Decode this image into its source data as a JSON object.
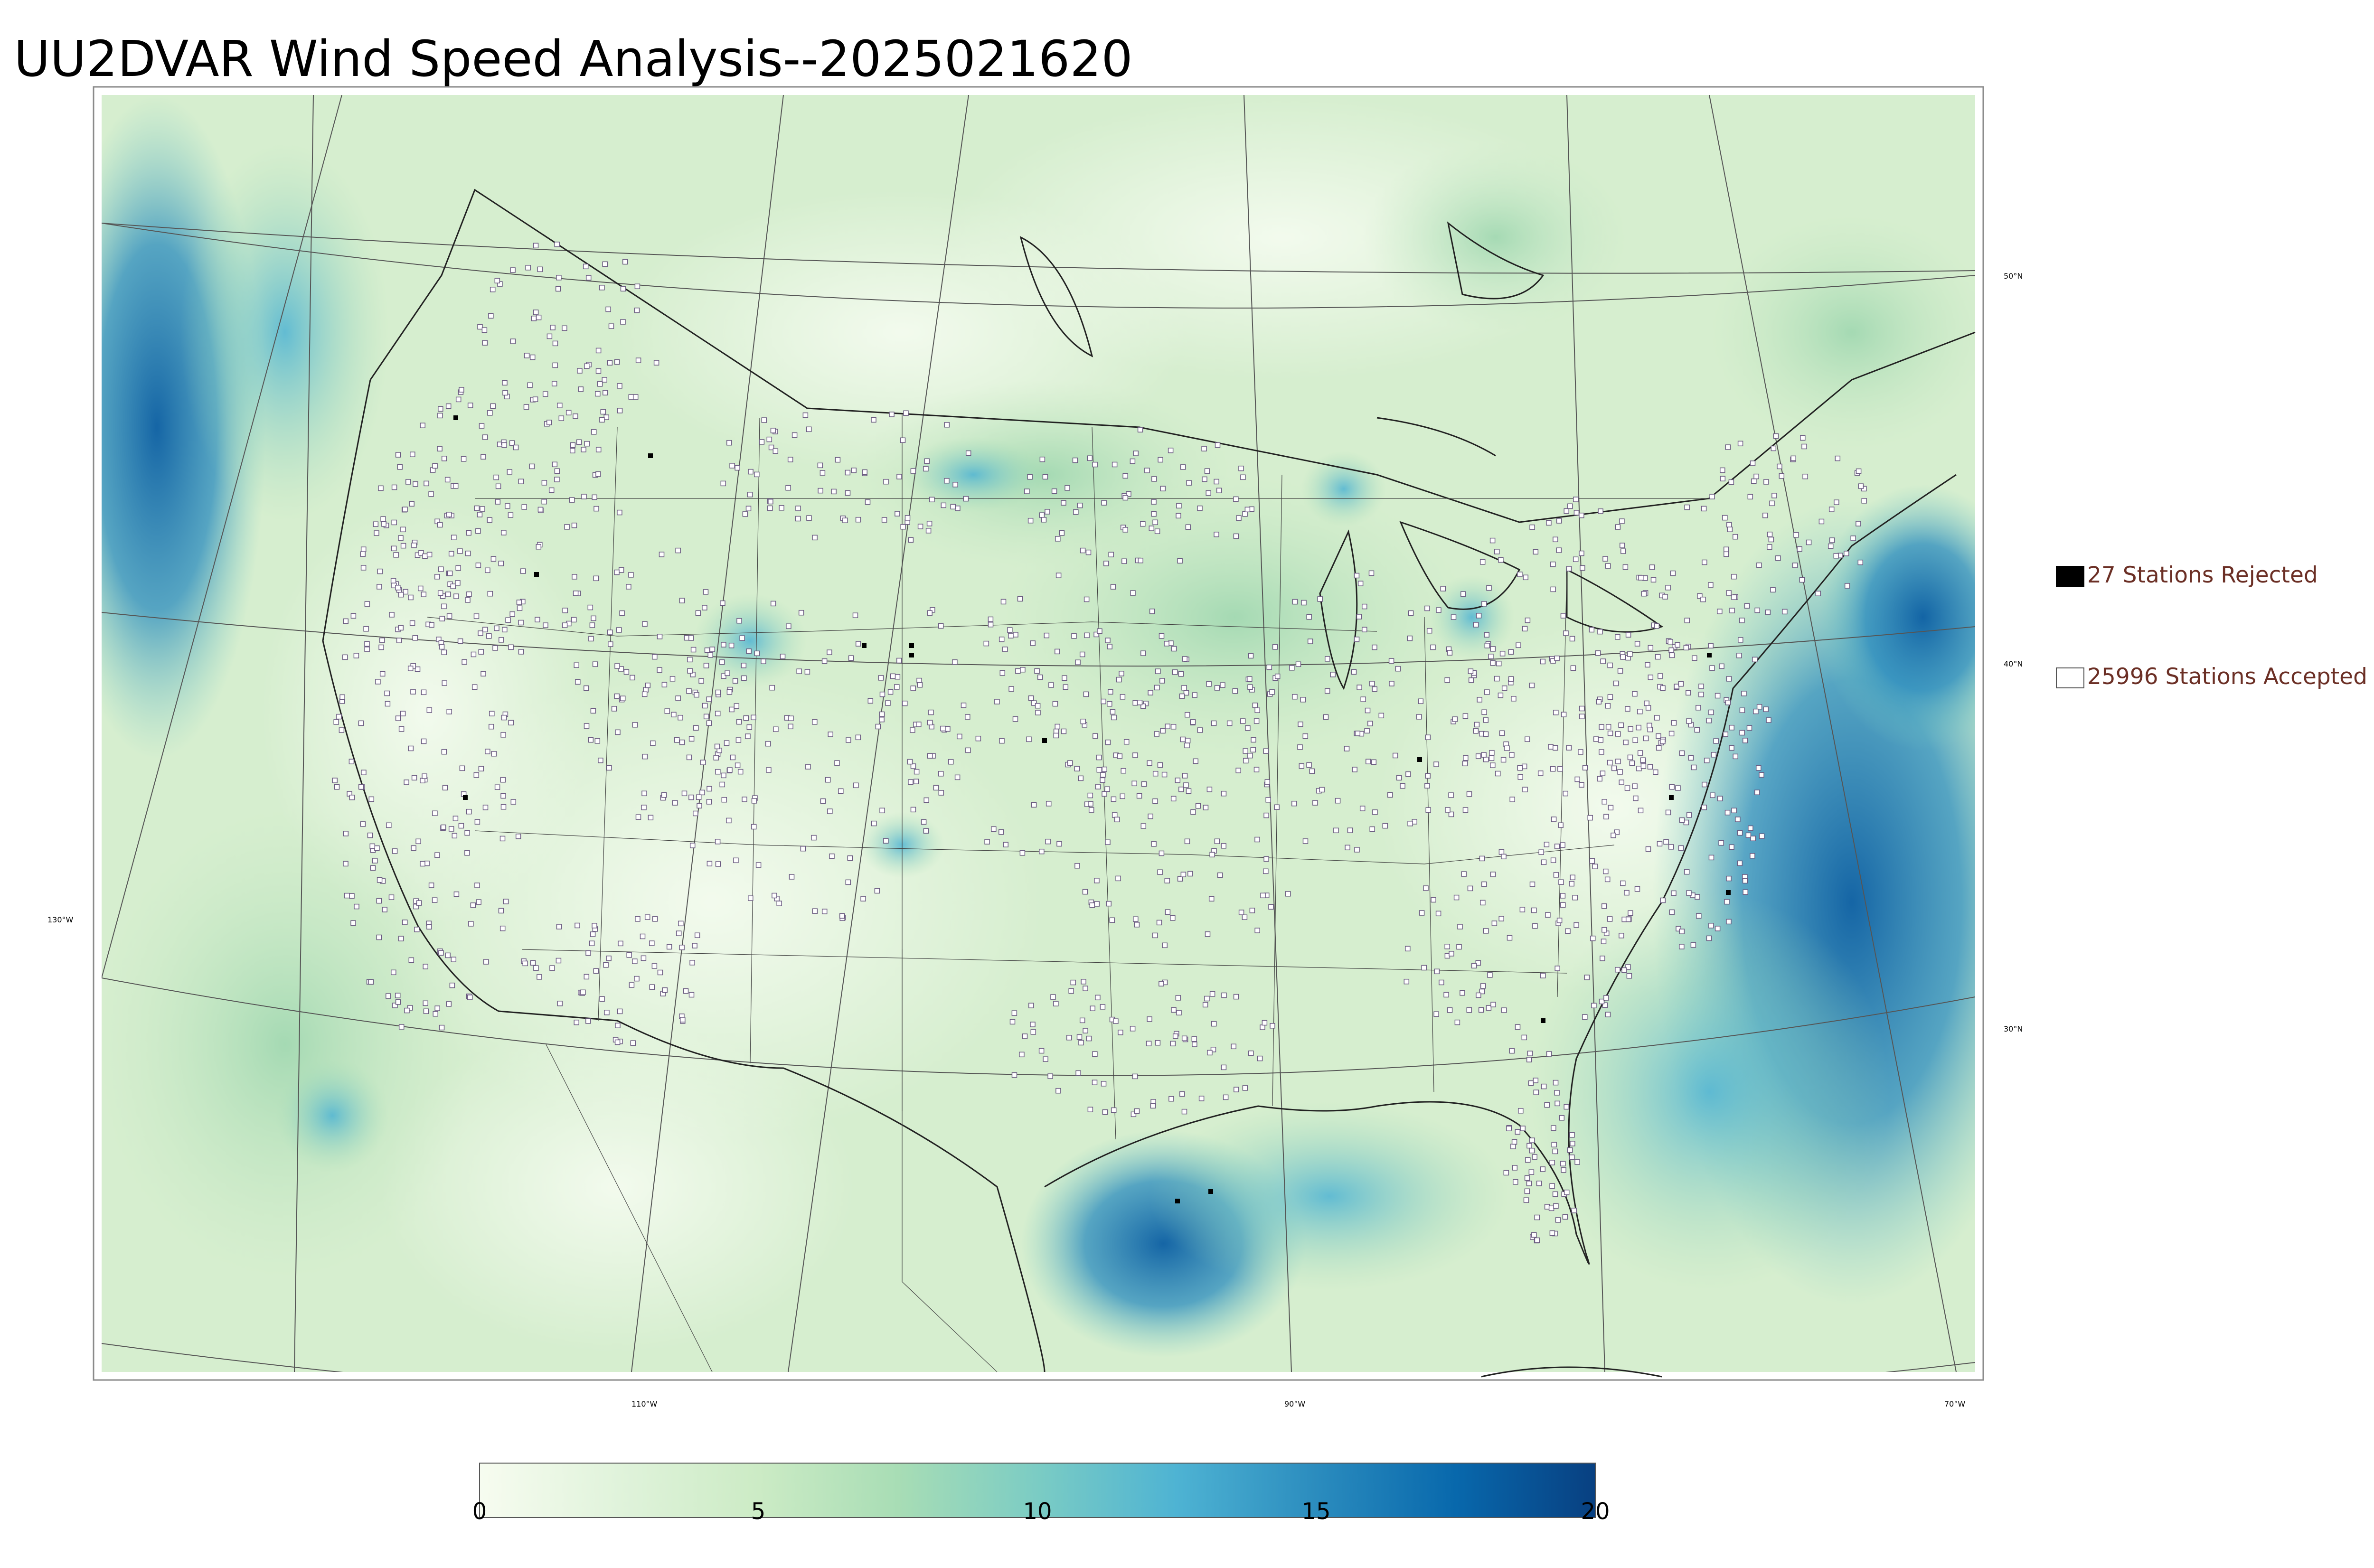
{
  "title": "UU2DVAR Wind Speed Analysis--2025021620",
  "legend": {
    "rejected": {
      "label": "27 Stations Rejected",
      "color": "#000000"
    },
    "accepted": {
      "label": "25996 Stations Accepted",
      "color": "#ffffff"
    }
  },
  "colorbar": {
    "ticks": [
      "0",
      "5",
      "10",
      "15",
      "20"
    ],
    "min": 0,
    "max": 20,
    "colors": [
      "#f7fcf0",
      "#e0f3db",
      "#ccebc5",
      "#a8ddb5",
      "#7bccc4",
      "#4eb3d3",
      "#2b8cbe",
      "#0868ac",
      "#084081"
    ]
  },
  "graticule": {
    "longitude_labels": [
      "110°W",
      "90°W",
      "70°W",
      "130°W"
    ],
    "latitude_labels": [
      "50°N",
      "40°N",
      "30°N"
    ]
  },
  "colors": {
    "land_base": "#dff0d6",
    "ocean_calm": "#c8e8c4",
    "strong_wind": "#0e64a8",
    "station_outline": "#6a5a80"
  }
}
